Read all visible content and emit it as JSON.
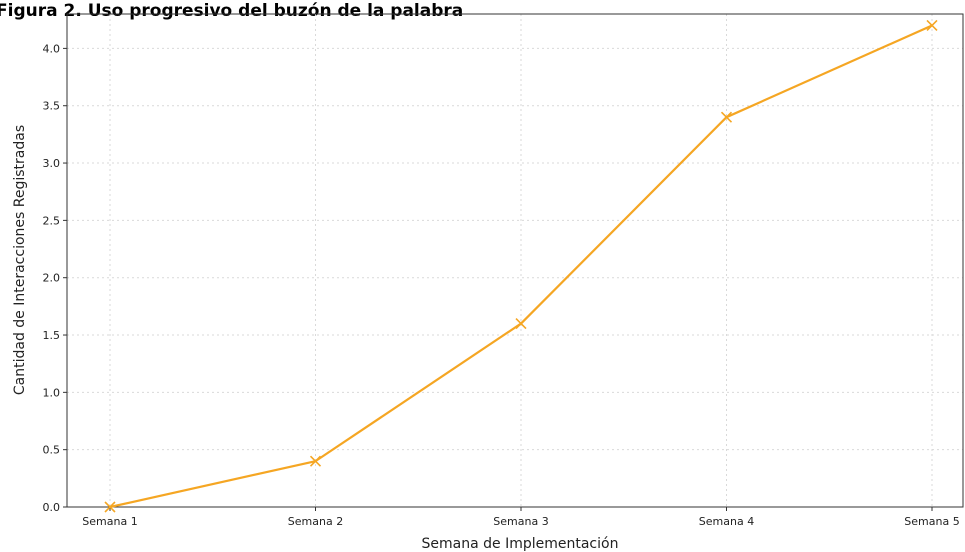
{
  "chart_data": {
    "type": "line",
    "title": "Figura 2. Uso progresivo del buzón de la palabra",
    "xlabel": "Semana de Implementación",
    "ylabel": "Cantidad de Interacciones Registradas",
    "categories": [
      "Semana 1",
      "Semana 2",
      "Semana 3",
      "Semana 4",
      "Semana 5"
    ],
    "series": [
      {
        "values": [
          0.0,
          0.4,
          1.6,
          3.4,
          4.2
        ],
        "color": "#f5a623",
        "marker": "x"
      }
    ],
    "ylim": [
      0.0,
      4.3
    ],
    "yticks": [
      "0.0",
      "0.5",
      "1.0",
      "1.5",
      "2.0",
      "2.5",
      "3.0",
      "3.5",
      "4.0"
    ],
    "grid": true,
    "grid_style": "dotted"
  }
}
